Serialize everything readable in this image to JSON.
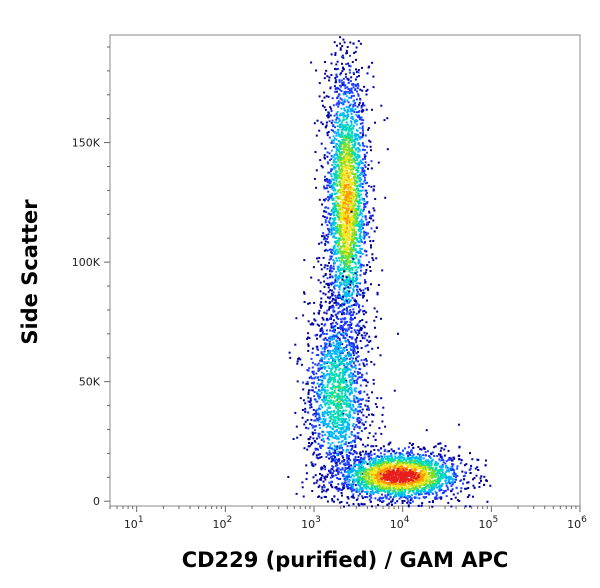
{
  "chart_data": {
    "type": "scatter",
    "title": "",
    "xlabel": "CD229 (purified) / GAM APC",
    "ylabel": "Side Scatter",
    "x_scale": "log",
    "xlim": [
      5,
      1000000
    ],
    "ylim": [
      -2000,
      195000
    ],
    "x_ticks": [
      {
        "value": 10,
        "base": "10",
        "exp": "1"
      },
      {
        "value": 100,
        "base": "10",
        "exp": "2"
      },
      {
        "value": 1000,
        "base": "10",
        "exp": "3"
      },
      {
        "value": 10000,
        "base": "10",
        "exp": "4"
      },
      {
        "value": 100000,
        "base": "10",
        "exp": "5"
      },
      {
        "value": 1000000,
        "base": "10",
        "exp": "6"
      }
    ],
    "y_ticks": [
      {
        "value": 0,
        "label": "0"
      },
      {
        "value": 50000,
        "label": "50K"
      },
      {
        "value": 100000,
        "label": "100K"
      },
      {
        "value": 150000,
        "label": "150K"
      }
    ],
    "grid": false,
    "colormap": [
      "#0000a0",
      "#1e3cff",
      "#00b4ff",
      "#00dcb4",
      "#7ddc28",
      "#f0e61e",
      "#ff9600",
      "#e61e1e"
    ],
    "populations": [
      {
        "x_center": 2300,
        "y_center": 125000,
        "x_spread_decades": 0.12,
        "y_spread": 28000,
        "density": 0.75
      },
      {
        "x_center": 1800,
        "y_center": 45000,
        "x_spread_decades": 0.18,
        "y_spread": 20000,
        "density": 0.45
      },
      {
        "x_center": 9000,
        "y_center": 11000,
        "x_spread_decades": 0.35,
        "y_spread": 5000,
        "density": 1.0
      }
    ]
  }
}
